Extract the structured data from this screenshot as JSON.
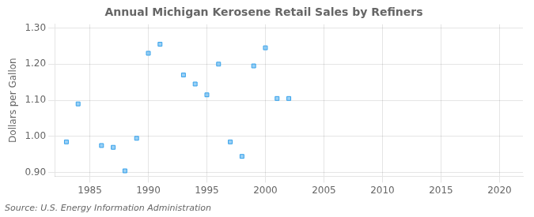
{
  "chart_data": {
    "type": "scatter",
    "title": "Annual Michigan Kerosene Retail Sales by Refiners",
    "ylabel": "Dollars per Gallon",
    "annotations": [
      "Source: U.S. Energy Information Administration"
    ],
    "x": [
      1983,
      1984,
      1986,
      1987,
      1988,
      1989,
      1990,
      1991,
      1993,
      1994,
      1995,
      1996,
      1997,
      1998,
      1999,
      2000,
      2001,
      2002
    ],
    "values": [
      0.985,
      1.09,
      0.975,
      0.97,
      0.905,
      0.995,
      1.23,
      1.255,
      1.17,
      1.145,
      1.115,
      1.2,
      0.985,
      0.945,
      1.195,
      1.245,
      1.105,
      1.105
    ],
    "xlim": [
      1982,
      2022
    ],
    "ylim": [
      0.89,
      1.31
    ],
    "xticks": [
      1985,
      1990,
      1995,
      2000,
      2005,
      2010,
      2015,
      2020
    ],
    "yticks": [
      {
        "value": 0.9,
        "label": "0.90"
      },
      {
        "value": 1.0,
        "label": "1.00"
      },
      {
        "value": 1.1,
        "label": "1.10"
      },
      {
        "value": 1.2,
        "label": "1.20"
      },
      {
        "value": 1.3,
        "label": "1.30"
      }
    ],
    "marker": "square",
    "grid": true
  }
}
